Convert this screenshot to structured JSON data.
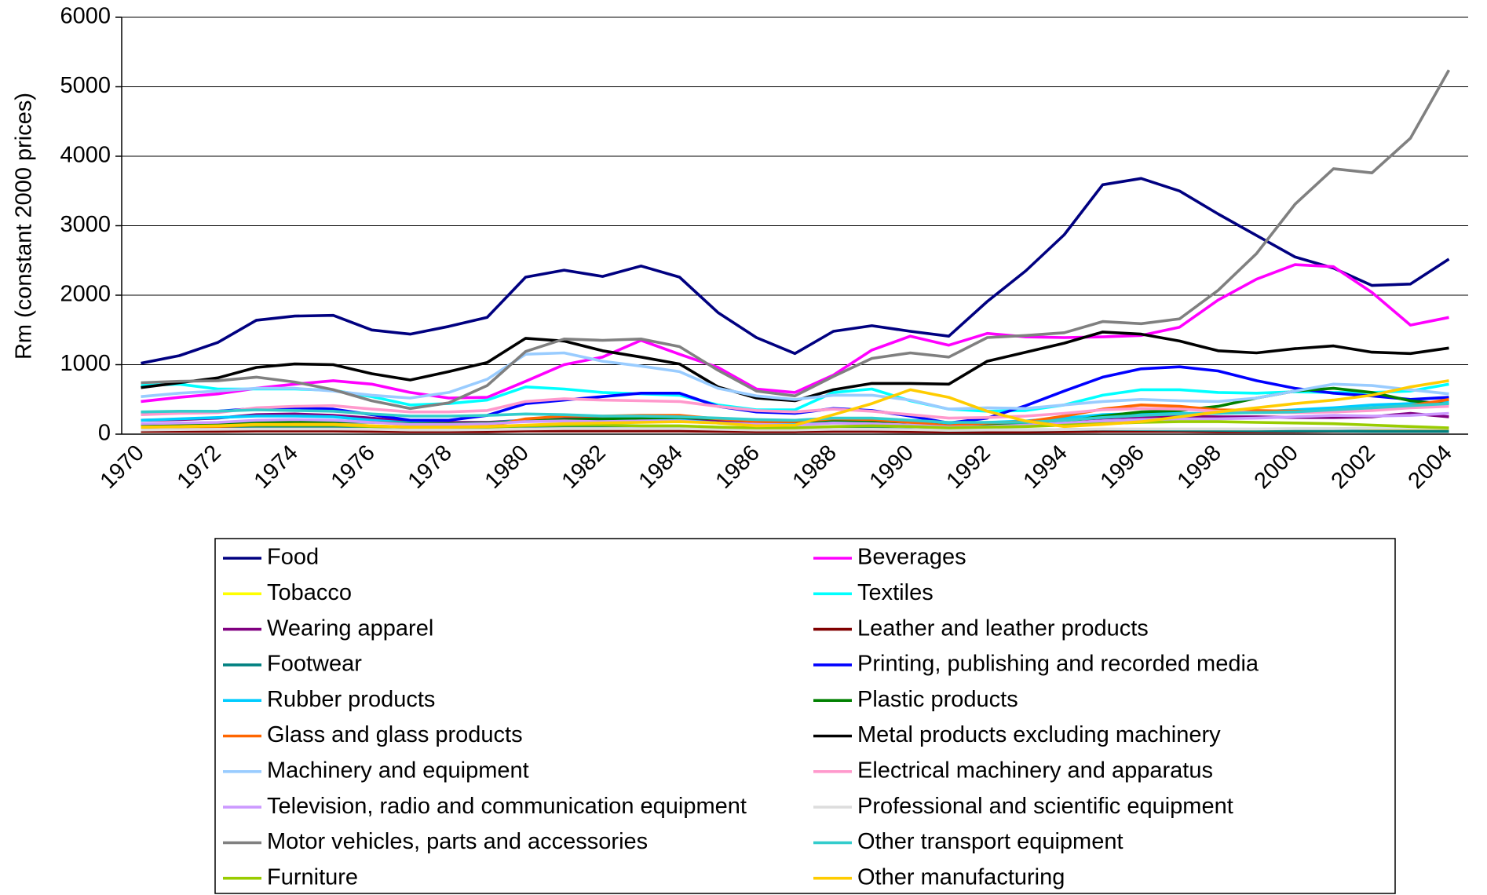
{
  "chart_data": {
    "type": "line",
    "y_label": "Rm (constant 2000 prices)",
    "x": [
      1970,
      1971,
      1972,
      1973,
      1974,
      1975,
      1976,
      1977,
      1978,
      1979,
      1980,
      1981,
      1982,
      1983,
      1984,
      1985,
      1986,
      1987,
      1988,
      1989,
      1990,
      1991,
      1992,
      1993,
      1994,
      1995,
      1996,
      1997,
      1998,
      1999,
      2000,
      2001,
      2002,
      2003,
      2004
    ],
    "xlim": [
      1969.5,
      2004.5
    ],
    "xticks": [
      1970,
      1972,
      1974,
      1976,
      1978,
      1980,
      1982,
      1984,
      1986,
      1988,
      1990,
      1992,
      1994,
      1996,
      1998,
      2000,
      2002,
      2004
    ],
    "ylim": [
      0,
      6000
    ],
    "yticks": [
      0,
      1000,
      2000,
      3000,
      4000,
      5000,
      6000
    ],
    "grid": true,
    "legend": "bottom",
    "series": [
      {
        "name": "Food",
        "color": "#000080",
        "values": [
          1020,
          1130,
          1320,
          1640,
          1700,
          1710,
          1500,
          1440,
          1550,
          1680,
          2260,
          2360,
          2270,
          2420,
          2260,
          1750,
          1390,
          1160,
          1480,
          1560,
          1480,
          1410,
          1910,
          2350,
          2870,
          3590,
          3680,
          3500,
          3170,
          2860,
          2550,
          2390,
          2140,
          2160,
          2520
        ]
      },
      {
        "name": "Beverages",
        "color": "#FF00FF",
        "values": [
          470,
          530,
          580,
          660,
          720,
          770,
          720,
          600,
          520,
          530,
          760,
          1000,
          1110,
          1350,
          1150,
          960,
          650,
          600,
          850,
          1210,
          1410,
          1280,
          1450,
          1400,
          1390,
          1400,
          1420,
          1540,
          1930,
          2230,
          2440,
          2410,
          2040,
          1570,
          1680
        ]
      },
      {
        "name": "Tobacco",
        "color": "#FFFF00",
        "values": [
          40,
          45,
          50,
          55,
          55,
          55,
          50,
          50,
          50,
          50,
          55,
          60,
          60,
          60,
          60,
          60,
          55,
          55,
          60,
          60,
          60,
          55,
          60,
          60,
          60,
          65,
          65,
          65,
          60,
          60,
          60,
          60,
          60,
          60,
          60
        ]
      },
      {
        "name": "Textiles",
        "color": "#00FFFF",
        "values": [
          700,
          720,
          650,
          650,
          650,
          630,
          540,
          420,
          440,
          490,
          680,
          650,
          600,
          580,
          560,
          420,
          350,
          350,
          600,
          650,
          480,
          360,
          330,
          340,
          420,
          560,
          640,
          640,
          600,
          590,
          610,
          600,
          600,
          620,
          720
        ]
      },
      {
        "name": "Wearing apparel",
        "color": "#800080",
        "values": [
          200,
          210,
          230,
          280,
          290,
          270,
          230,
          180,
          170,
          170,
          200,
          230,
          230,
          230,
          230,
          200,
          160,
          150,
          200,
          200,
          190,
          140,
          160,
          170,
          200,
          230,
          250,
          260,
          250,
          250,
          240,
          240,
          250,
          300,
          250
        ]
      },
      {
        "name": "Leather and leather products",
        "color": "#800000",
        "values": [
          40,
          40,
          40,
          45,
          45,
          45,
          40,
          35,
          35,
          35,
          45,
          45,
          45,
          45,
          45,
          40,
          35,
          35,
          40,
          40,
          35,
          30,
          30,
          30,
          35,
          40,
          40,
          40,
          35,
          35,
          35,
          40,
          40,
          40,
          40
        ]
      },
      {
        "name": "Footwear",
        "color": "#008080",
        "values": [
          90,
          95,
          100,
          110,
          110,
          105,
          90,
          80,
          80,
          85,
          100,
          100,
          95,
          95,
          95,
          85,
          75,
          70,
          80,
          80,
          70,
          55,
          60,
          60,
          65,
          70,
          65,
          60,
          55,
          50,
          45,
          45,
          40,
          40,
          40
        ]
      },
      {
        "name": "Printing, publishing and recorded media",
        "color": "#0000FF",
        "values": [
          300,
          320,
          330,
          370,
          380,
          360,
          280,
          200,
          200,
          270,
          440,
          490,
          540,
          590,
          590,
          400,
          320,
          300,
          370,
          340,
          260,
          160,
          230,
          410,
          620,
          820,
          940,
          970,
          910,
          770,
          660,
          590,
          550,
          500,
          530
        ]
      },
      {
        "name": "Rubber products",
        "color": "#00CCFF",
        "values": [
          200,
          220,
          240,
          260,
          260,
          250,
          200,
          160,
          150,
          160,
          200,
          210,
          200,
          190,
          200,
          160,
          140,
          140,
          170,
          200,
          170,
          150,
          170,
          190,
          230,
          280,
          300,
          300,
          300,
          320,
          350,
          380,
          420,
          440,
          470
        ]
      },
      {
        "name": "Plastic products",
        "color": "#008000",
        "values": [
          130,
          140,
          150,
          170,
          180,
          180,
          170,
          150,
          150,
          160,
          190,
          210,
          220,
          230,
          240,
          220,
          190,
          180,
          200,
          190,
          170,
          120,
          140,
          150,
          180,
          260,
          320,
          340,
          400,
          520,
          620,
          660,
          600,
          480,
          430
        ]
      },
      {
        "name": "Glass and glass products",
        "color": "#FF6600",
        "values": [
          90,
          100,
          110,
          130,
          140,
          140,
          120,
          100,
          100,
          110,
          220,
          260,
          260,
          270,
          270,
          220,
          180,
          180,
          220,
          210,
          170,
          120,
          160,
          180,
          260,
          360,
          420,
          400,
          350,
          340,
          330,
          320,
          350,
          410,
          500
        ]
      },
      {
        "name": "Metal products excluding machinery",
        "color": "#000000",
        "values": [
          670,
          740,
          810,
          960,
          1010,
          1000,
          870,
          780,
          900,
          1030,
          1380,
          1340,
          1200,
          1110,
          1010,
          680,
          520,
          480,
          640,
          730,
          730,
          720,
          1050,
          1180,
          1310,
          1470,
          1440,
          1340,
          1200,
          1170,
          1230,
          1270,
          1180,
          1160,
          1240
        ]
      },
      {
        "name": "Machinery and equipment",
        "color": "#99CCFF",
        "values": [
          540,
          590,
          620,
          660,
          660,
          620,
          560,
          520,
          600,
          790,
          1150,
          1170,
          1050,
          980,
          900,
          660,
          550,
          500,
          560,
          560,
          490,
          360,
          380,
          370,
          420,
          470,
          500,
          480,
          470,
          520,
          620,
          720,
          700,
          640,
          580
        ]
      },
      {
        "name": "Electrical machinery and apparatus",
        "color": "#FF99CC",
        "values": [
          280,
          300,
          310,
          380,
          400,
          410,
          360,
          320,
          320,
          340,
          470,
          510,
          490,
          480,
          470,
          400,
          340,
          320,
          360,
          330,
          280,
          230,
          240,
          260,
          300,
          350,
          370,
          360,
          330,
          310,
          310,
          320,
          340,
          380,
          400
        ]
      },
      {
        "name": "Television, radio and communication equipment",
        "color": "#CC99FF",
        "values": [
          150,
          160,
          170,
          200,
          210,
          200,
          170,
          140,
          140,
          150,
          180,
          190,
          180,
          190,
          190,
          160,
          140,
          130,
          160,
          150,
          130,
          100,
          110,
          130,
          160,
          190,
          210,
          220,
          220,
          230,
          250,
          270,
          260,
          270,
          300
        ]
      },
      {
        "name": "Professional and scientific equipment",
        "color": "#DDDDDD",
        "values": [
          60,
          65,
          70,
          75,
          75,
          75,
          70,
          60,
          60,
          65,
          75,
          80,
          80,
          80,
          80,
          70,
          60,
          60,
          70,
          70,
          65,
          55,
          60,
          60,
          65,
          75,
          75,
          75,
          75,
          75,
          80,
          80,
          85,
          85,
          85
        ]
      },
      {
        "name": "Motor vehicles, parts and accessories",
        "color": "#808080",
        "values": [
          740,
          760,
          770,
          820,
          750,
          640,
          480,
          370,
          450,
          700,
          1190,
          1370,
          1350,
          1370,
          1260,
          920,
          620,
          550,
          830,
          1090,
          1170,
          1110,
          1390,
          1420,
          1460,
          1620,
          1590,
          1660,
          2070,
          2600,
          3310,
          3820,
          3760,
          4260,
          5240
        ]
      },
      {
        "name": "Other transport equipment",
        "color": "#33CCCC",
        "values": [
          320,
          330,
          330,
          350,
          340,
          330,
          290,
          260,
          260,
          270,
          290,
          280,
          260,
          260,
          250,
          230,
          210,
          200,
          230,
          230,
          200,
          170,
          170,
          170,
          200,
          240,
          270,
          290,
          300,
          310,
          320,
          350,
          380,
          410,
          440
        ]
      },
      {
        "name": "Furniture",
        "color": "#99CC00",
        "values": [
          100,
          110,
          120,
          130,
          130,
          130,
          110,
          100,
          100,
          100,
          120,
          130,
          130,
          120,
          120,
          100,
          90,
          90,
          110,
          120,
          110,
          90,
          100,
          110,
          130,
          150,
          170,
          180,
          180,
          170,
          160,
          150,
          130,
          110,
          90
        ]
      },
      {
        "name": "Other manufacturing",
        "color": "#FFCC00",
        "values": [
          100,
          110,
          120,
          140,
          140,
          140,
          120,
          100,
          100,
          110,
          130,
          150,
          160,
          170,
          180,
          160,
          120,
          130,
          280,
          440,
          640,
          530,
          330,
          190,
          110,
          140,
          180,
          250,
          320,
          380,
          440,
          490,
          560,
          680,
          770
        ]
      }
    ]
  }
}
